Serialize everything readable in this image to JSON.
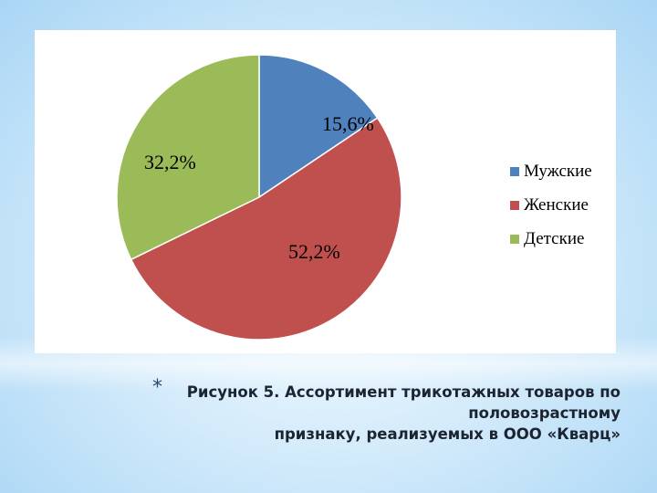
{
  "chart_data": {
    "type": "pie",
    "categories": [
      "Мужские",
      "Женские",
      "Детские"
    ],
    "values": [
      15.6,
      52.2,
      32.2
    ],
    "data_labels": [
      "15,6%",
      "52,2%",
      "32,2%"
    ],
    "colors": [
      "#4f81bd",
      "#c0504d",
      "#9bbb59"
    ],
    "legend_position": "right",
    "start_angle": "top, clockwise"
  },
  "caption": {
    "bullet": "*",
    "line1": "Рисунок 5. Ассортимент трикотажных товаров по",
    "line2": "половозрастному",
    "line3": "признаку, реализуемых в ООО «Кварц»"
  }
}
